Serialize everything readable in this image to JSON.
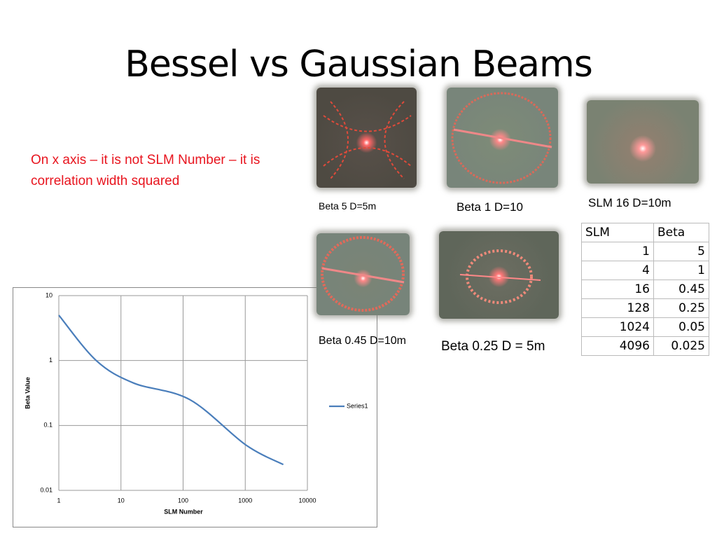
{
  "title": "Bessel vs Gaussian Beams",
  "note": "On x axis – it is not SLM Number – it is correlation width squared",
  "images": [
    {
      "caption": "Beta 5 D=5m"
    },
    {
      "caption": "Beta 1 D=10"
    },
    {
      "caption": "SLM 16 D=10m"
    },
    {
      "caption": "Beta 0.45 D=10m"
    },
    {
      "caption": "Beta 0.25 D = 5m"
    }
  ],
  "table": {
    "header": [
      "SLM",
      "Beta"
    ],
    "rows": [
      [
        1,
        5
      ],
      [
        4,
        1
      ],
      [
        16,
        0.45
      ],
      [
        128,
        0.25
      ],
      [
        1024,
        0.05
      ],
      [
        4096,
        0.025
      ]
    ]
  },
  "chart_data": {
    "type": "line",
    "x_label": "SLM Number",
    "y_label": "Beta Value",
    "x": [
      1,
      4,
      16,
      128,
      1024,
      4096
    ],
    "series": [
      {
        "name": "Series1",
        "color": "#4a7ebb",
        "values": [
          5,
          1,
          0.45,
          0.25,
          0.05,
          0.025
        ]
      }
    ],
    "xlim": [
      1,
      10000
    ],
    "xticks": [
      1,
      10,
      100,
      1000,
      10000
    ],
    "ylim": [
      0.01,
      10
    ],
    "yticks": [
      0.01,
      0.1,
      1,
      10
    ],
    "log_x": true,
    "log_y": true,
    "grid": true,
    "legend": "right"
  }
}
